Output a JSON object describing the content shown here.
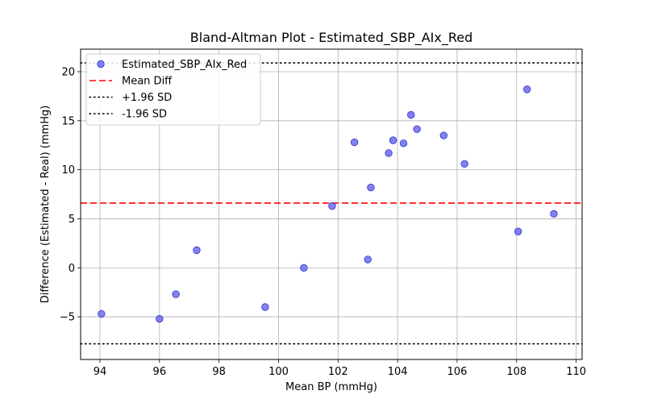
{
  "chart_data": {
    "type": "scatter",
    "title": "Bland-Altman Plot - Estimated_SBP_AIx_Red",
    "xlabel": "Mean BP (mmHg)",
    "ylabel": "Difference (Estimated - Real) (mmHg)",
    "xlim": [
      93.35,
      110.2
    ],
    "ylim": [
      -9.35,
      22.3
    ],
    "xticks": [
      94,
      96,
      98,
      100,
      102,
      104,
      106,
      108,
      110
    ],
    "yticks": [
      -5,
      0,
      5,
      10,
      15,
      20
    ],
    "grid": true,
    "legend_position": "top-left",
    "series": [
      {
        "name": "Estimated_SBP_AIx_Red",
        "kind": "scatter",
        "color": "#6b6bf0",
        "edge_color": "#3333cc",
        "points": [
          {
            "x": 94.05,
            "y": -4.7
          },
          {
            "x": 96.0,
            "y": -5.2
          },
          {
            "x": 96.55,
            "y": -2.7
          },
          {
            "x": 97.25,
            "y": 1.8
          },
          {
            "x": 99.55,
            "y": -4.0
          },
          {
            "x": 100.85,
            "y": 0.0
          },
          {
            "x": 101.8,
            "y": 6.3
          },
          {
            "x": 102.55,
            "y": 12.8
          },
          {
            "x": 103.0,
            "y": 0.85
          },
          {
            "x": 103.1,
            "y": 8.2
          },
          {
            "x": 103.7,
            "y": 11.7
          },
          {
            "x": 103.85,
            "y": 13.0
          },
          {
            "x": 104.2,
            "y": 12.7
          },
          {
            "x": 104.45,
            "y": 15.6
          },
          {
            "x": 104.65,
            "y": 14.15
          },
          {
            "x": 105.55,
            "y": 13.5
          },
          {
            "x": 106.25,
            "y": 10.6
          },
          {
            "x": 108.05,
            "y": 3.7
          },
          {
            "x": 108.35,
            "y": 18.2
          },
          {
            "x": 109.25,
            "y": 5.5
          }
        ]
      },
      {
        "name": "Mean Diff",
        "kind": "hline",
        "y": 6.6,
        "color": "#ff0000",
        "style": "dashed"
      },
      {
        "name": "+1.96 SD",
        "kind": "hline",
        "y": 20.9,
        "color": "#000000",
        "style": "dotted"
      },
      {
        "name": "-1.96 SD",
        "kind": "hline",
        "y": -7.75,
        "color": "#000000",
        "style": "dotted"
      }
    ]
  }
}
